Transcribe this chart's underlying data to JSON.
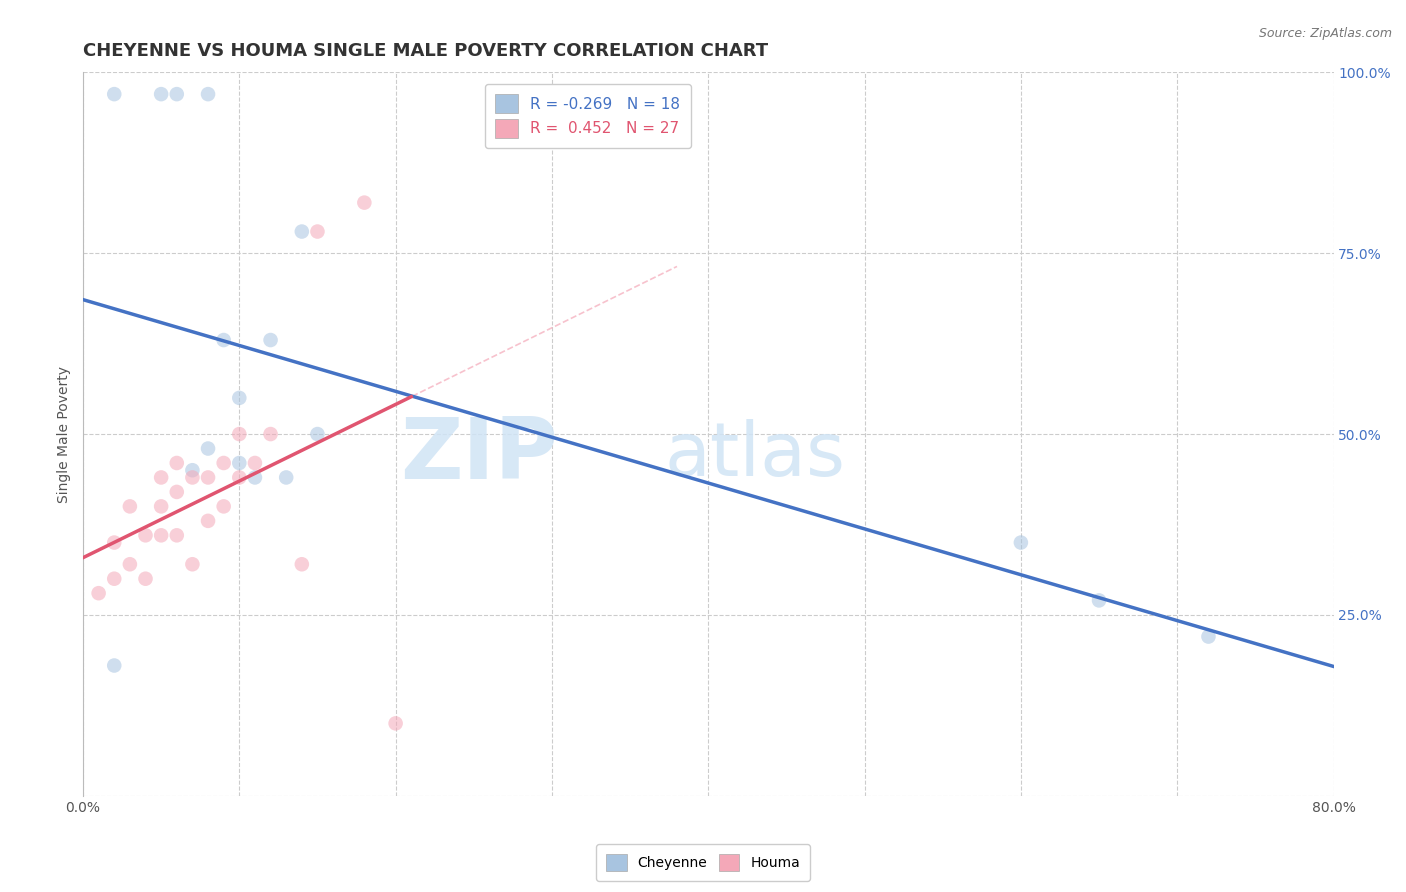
{
  "title": "CHEYENNE VS HOUMA SINGLE MALE POVERTY CORRELATION CHART",
  "source": "Source: ZipAtlas.com",
  "ylabel": "Single Male Poverty",
  "watermark_zip": "ZIP",
  "watermark_atlas": "atlas",
  "xlim": [
    0.0,
    0.8
  ],
  "ylim": [
    0.0,
    1.0
  ],
  "xticks": [
    0.0,
    0.1,
    0.2,
    0.3,
    0.4,
    0.5,
    0.6,
    0.7,
    0.8
  ],
  "xtick_labels": [
    "0.0%",
    "",
    "",
    "",
    "",
    "",
    "",
    "",
    "80.0%"
  ],
  "yticks": [
    0.0,
    0.25,
    0.5,
    0.75,
    1.0
  ],
  "ytick_labels": [
    "",
    "25.0%",
    "50.0%",
    "75.0%",
    "100.0%"
  ],
  "cheyenne_R": -0.269,
  "cheyenne_N": 18,
  "houma_R": 0.452,
  "houma_N": 27,
  "cheyenne_color": "#a8c4e0",
  "houma_color": "#f4a8b8",
  "cheyenne_line_color": "#4472c4",
  "houma_line_color": "#e05570",
  "cheyenne_x": [
    0.02,
    0.05,
    0.06,
    0.08,
    0.09,
    0.1,
    0.12,
    0.14,
    0.6,
    0.65,
    0.72,
    0.02,
    0.07,
    0.08,
    0.1,
    0.11,
    0.13,
    0.15
  ],
  "cheyenne_y": [
    0.97,
    0.97,
    0.97,
    0.97,
    0.63,
    0.55,
    0.63,
    0.78,
    0.35,
    0.27,
    0.22,
    0.18,
    0.45,
    0.48,
    0.46,
    0.44,
    0.44,
    0.5
  ],
  "houma_x": [
    0.01,
    0.02,
    0.02,
    0.03,
    0.03,
    0.04,
    0.04,
    0.05,
    0.05,
    0.05,
    0.06,
    0.06,
    0.06,
    0.07,
    0.07,
    0.08,
    0.08,
    0.09,
    0.09,
    0.1,
    0.1,
    0.11,
    0.12,
    0.14,
    0.15,
    0.18,
    0.2
  ],
  "houma_y": [
    0.28,
    0.3,
    0.35,
    0.32,
    0.4,
    0.3,
    0.36,
    0.36,
    0.4,
    0.44,
    0.36,
    0.42,
    0.46,
    0.32,
    0.44,
    0.38,
    0.44,
    0.4,
    0.46,
    0.44,
    0.5,
    0.46,
    0.5,
    0.32,
    0.78,
    0.82,
    0.1
  ],
  "cheyenne_trendline_x": [
    0.0,
    0.8
  ],
  "houma_trendline_x": [
    0.0,
    0.21
  ],
  "background_color": "#ffffff",
  "grid_color": "#cccccc",
  "title_color": "#333333",
  "title_fontsize": 13,
  "axis_label_fontsize": 10,
  "tick_fontsize": 10,
  "legend_fontsize": 11,
  "marker_size": 110,
  "marker_alpha": 0.55
}
